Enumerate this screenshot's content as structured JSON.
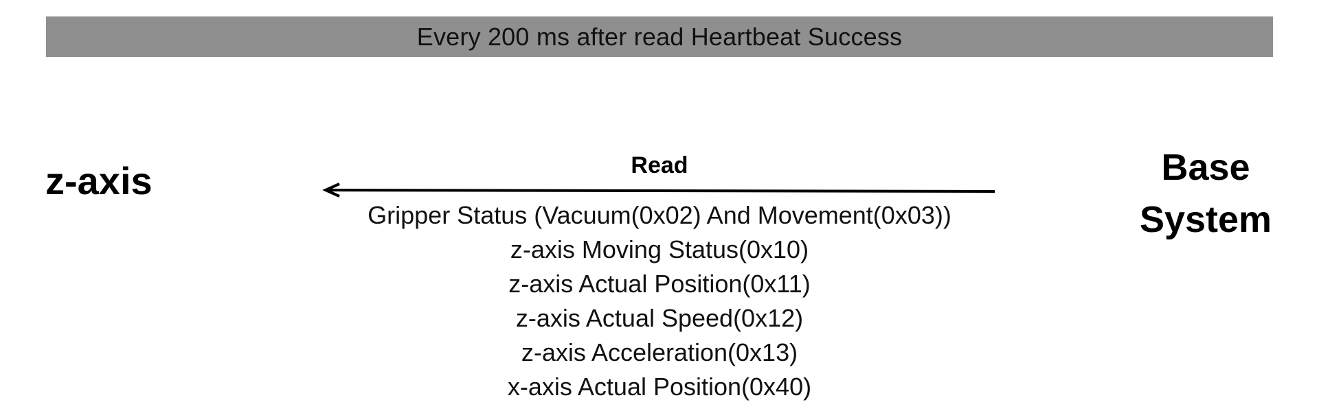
{
  "banner": {
    "text": "Every 200 ms after read Heartbeat Success",
    "background": "#8f8f8f"
  },
  "nodes": {
    "left": {
      "label": "z-axis"
    },
    "right": {
      "label_line1": "Base",
      "label_line2": "System"
    }
  },
  "message": {
    "direction": "right-to-left",
    "label": "Read",
    "items": [
      "Gripper Status (Vacuum(0x02) And Movement(0x03))",
      "z-axis Moving Status(0x10)",
      "z-axis Actual Position(0x11)",
      "z-axis Actual Speed(0x12)",
      "z-axis Acceleration(0x13)",
      "x-axis Actual Position(0x40)"
    ]
  }
}
